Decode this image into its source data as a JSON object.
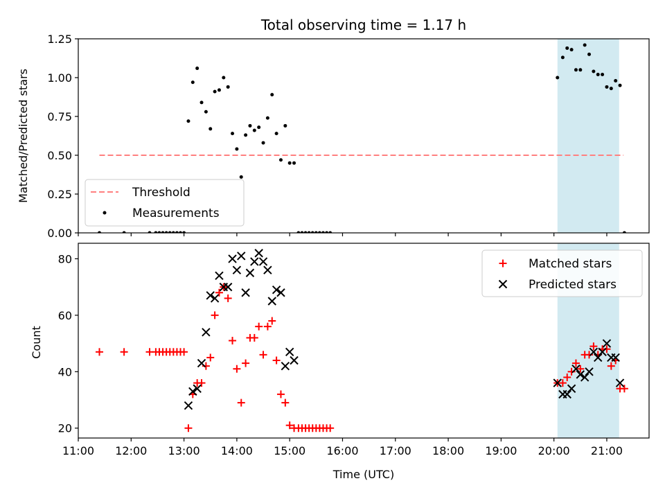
{
  "colors": {
    "threshold": "#ff7f7f",
    "measurement": "#000000",
    "matched": "#ff0000",
    "predicted": "#000000",
    "shade": "#add8e6"
  },
  "chart_data": [
    {
      "type": "scatter",
      "title": "Total observing time = 1.17 h",
      "xlabel": "",
      "ylabel": "Matched/Predicted stars",
      "xlim": [
        "11:00",
        "21:48"
      ],
      "ylim": [
        0,
        1.25
      ],
      "x_ticks": [
        "11:00",
        "12:00",
        "13:00",
        "14:00",
        "15:00",
        "16:00",
        "17:00",
        "18:00",
        "19:00",
        "20:00",
        "21:00"
      ],
      "y_ticks": [
        "0.00",
        "0.25",
        "0.50",
        "0.75",
        "1.00",
        "1.25"
      ],
      "shaded_region": [
        "20:04",
        "21:14"
      ],
      "threshold": {
        "name": "Threshold",
        "value": 0.5,
        "x": [
          "11:24",
          "21:19"
        ]
      },
      "legend": {
        "placement": "lower-left",
        "entries": [
          "Threshold",
          "Measurements"
        ]
      },
      "series": [
        {
          "name": "Measurements",
          "points": [
            [
              "11:24",
              0
            ],
            [
              "11:52",
              0
            ],
            [
              "12:21",
              0
            ],
            [
              "12:28",
              0
            ],
            [
              "12:32",
              0
            ],
            [
              "12:36",
              0
            ],
            [
              "12:40",
              0
            ],
            [
              "12:44",
              0
            ],
            [
              "12:48",
              0
            ],
            [
              "12:52",
              0
            ],
            [
              "12:56",
              0
            ],
            [
              "13:00",
              0
            ],
            [
              "13:05",
              0.72
            ],
            [
              "13:10",
              0.97
            ],
            [
              "13:15",
              1.06
            ],
            [
              "13:20",
              0.84
            ],
            [
              "13:25",
              0.78
            ],
            [
              "13:30",
              0.67
            ],
            [
              "13:35",
              0.91
            ],
            [
              "13:40",
              0.92
            ],
            [
              "13:45",
              1.0
            ],
            [
              "13:50",
              0.94
            ],
            [
              "13:55",
              0.64
            ],
            [
              "14:00",
              0.54
            ],
            [
              "14:05",
              0.36
            ],
            [
              "14:10",
              0.63
            ],
            [
              "14:15",
              0.69
            ],
            [
              "14:20",
              0.66
            ],
            [
              "14:25",
              0.68
            ],
            [
              "14:30",
              0.58
            ],
            [
              "14:35",
              0.74
            ],
            [
              "14:40",
              0.89
            ],
            [
              "14:45",
              0.64
            ],
            [
              "14:50",
              0.47
            ],
            [
              "14:55",
              0.69
            ],
            [
              "15:00",
              0.45
            ],
            [
              "15:05",
              0.45
            ],
            [
              "15:10",
              0
            ],
            [
              "15:14",
              0
            ],
            [
              "15:18",
              0
            ],
            [
              "15:22",
              0
            ],
            [
              "15:26",
              0
            ],
            [
              "15:30",
              0
            ],
            [
              "15:34",
              0
            ],
            [
              "15:38",
              0
            ],
            [
              "15:42",
              0
            ],
            [
              "15:46",
              0
            ],
            [
              "20:04",
              1.0
            ],
            [
              "20:10",
              1.13
            ],
            [
              "20:15",
              1.19
            ],
            [
              "20:20",
              1.18
            ],
            [
              "20:25",
              1.05
            ],
            [
              "20:30",
              1.05
            ],
            [
              "20:35",
              1.21
            ],
            [
              "20:40",
              1.15
            ],
            [
              "20:45",
              1.04
            ],
            [
              "20:50",
              1.02
            ],
            [
              "20:55",
              1.02
            ],
            [
              "21:00",
              0.94
            ],
            [
              "21:05",
              0.93
            ],
            [
              "21:10",
              0.98
            ],
            [
              "21:15",
              0.95
            ],
            [
              "21:20",
              0
            ]
          ]
        }
      ]
    },
    {
      "type": "scatter",
      "title": "",
      "xlabel": "Time (UTC)",
      "ylabel": "Count",
      "xlim": [
        "11:00",
        "21:48"
      ],
      "ylim": [
        16.5,
        85.5
      ],
      "x_ticks": [
        "11:00",
        "12:00",
        "13:00",
        "14:00",
        "15:00",
        "16:00",
        "17:00",
        "18:00",
        "19:00",
        "20:00",
        "21:00"
      ],
      "y_ticks": [
        "20",
        "40",
        "60",
        "80"
      ],
      "shaded_region": [
        "20:04",
        "21:14"
      ],
      "legend": {
        "placement": "upper-right",
        "entries": [
          "Matched stars",
          "Predicted stars"
        ]
      },
      "series": [
        {
          "name": "Matched stars",
          "marker": "+",
          "points": [
            [
              "11:24",
              47
            ],
            [
              "11:52",
              47
            ],
            [
              "12:21",
              47
            ],
            [
              "12:28",
              47
            ],
            [
              "12:32",
              47
            ],
            [
              "12:36",
              47
            ],
            [
              "12:40",
              47
            ],
            [
              "12:44",
              47
            ],
            [
              "12:48",
              47
            ],
            [
              "12:52",
              47
            ],
            [
              "12:56",
              47
            ],
            [
              "13:00",
              47
            ],
            [
              "13:05",
              20
            ],
            [
              "13:10",
              32
            ],
            [
              "13:15",
              36
            ],
            [
              "13:20",
              36
            ],
            [
              "13:25",
              42
            ],
            [
              "13:30",
              45
            ],
            [
              "13:35",
              60
            ],
            [
              "13:40",
              68
            ],
            [
              "13:45",
              70
            ],
            [
              "13:50",
              66
            ],
            [
              "13:55",
              51
            ],
            [
              "14:00",
              41
            ],
            [
              "14:05",
              29
            ],
            [
              "14:10",
              43
            ],
            [
              "14:15",
              52
            ],
            [
              "14:20",
              52
            ],
            [
              "14:25",
              56
            ],
            [
              "14:30",
              46
            ],
            [
              "14:35",
              56
            ],
            [
              "14:40",
              58
            ],
            [
              "14:45",
              44
            ],
            [
              "14:50",
              32
            ],
            [
              "14:55",
              29
            ],
            [
              "15:00",
              21
            ],
            [
              "15:05",
              20
            ],
            [
              "15:10",
              20
            ],
            [
              "15:14",
              20
            ],
            [
              "15:18",
              20
            ],
            [
              "15:22",
              20
            ],
            [
              "15:26",
              20
            ],
            [
              "15:30",
              20
            ],
            [
              "15:34",
              20
            ],
            [
              "15:38",
              20
            ],
            [
              "15:42",
              20
            ],
            [
              "15:46",
              20
            ],
            [
              "20:04",
              36
            ],
            [
              "20:10",
              36
            ],
            [
              "20:15",
              38
            ],
            [
              "20:20",
              40
            ],
            [
              "20:25",
              43
            ],
            [
              "20:30",
              41
            ],
            [
              "20:35",
              46
            ],
            [
              "20:40",
              46
            ],
            [
              "20:45",
              49
            ],
            [
              "20:50",
              46
            ],
            [
              "20:55",
              48
            ],
            [
              "21:00",
              48
            ],
            [
              "21:05",
              42
            ],
            [
              "21:10",
              44
            ],
            [
              "21:15",
              34
            ],
            [
              "21:20",
              34
            ]
          ]
        },
        {
          "name": "Predicted stars",
          "marker": "x",
          "points": [
            [
              "13:05",
              28
            ],
            [
              "13:10",
              33
            ],
            [
              "13:15",
              34
            ],
            [
              "13:20",
              43
            ],
            [
              "13:25",
              54
            ],
            [
              "13:30",
              67
            ],
            [
              "13:35",
              66
            ],
            [
              "13:40",
              74
            ],
            [
              "13:45",
              70
            ],
            [
              "13:50",
              70
            ],
            [
              "13:55",
              80
            ],
            [
              "14:00",
              76
            ],
            [
              "14:05",
              81
            ],
            [
              "14:10",
              68
            ],
            [
              "14:15",
              75
            ],
            [
              "14:20",
              79
            ],
            [
              "14:25",
              82
            ],
            [
              "14:30",
              79
            ],
            [
              "14:35",
              76
            ],
            [
              "14:40",
              65
            ],
            [
              "14:45",
              69
            ],
            [
              "14:50",
              68
            ],
            [
              "14:55",
              42
            ],
            [
              "15:00",
              47
            ],
            [
              "15:05",
              44
            ],
            [
              "20:04",
              36
            ],
            [
              "20:10",
              32
            ],
            [
              "20:15",
              32
            ],
            [
              "20:20",
              34
            ],
            [
              "20:25",
              41
            ],
            [
              "20:30",
              39
            ],
            [
              "20:35",
              38
            ],
            [
              "20:40",
              40
            ],
            [
              "20:45",
              47
            ],
            [
              "20:50",
              45
            ],
            [
              "20:55",
              47
            ],
            [
              "21:00",
              50
            ],
            [
              "21:05",
              45
            ],
            [
              "21:10",
              45
            ],
            [
              "21:15",
              36
            ]
          ]
        }
      ]
    }
  ]
}
